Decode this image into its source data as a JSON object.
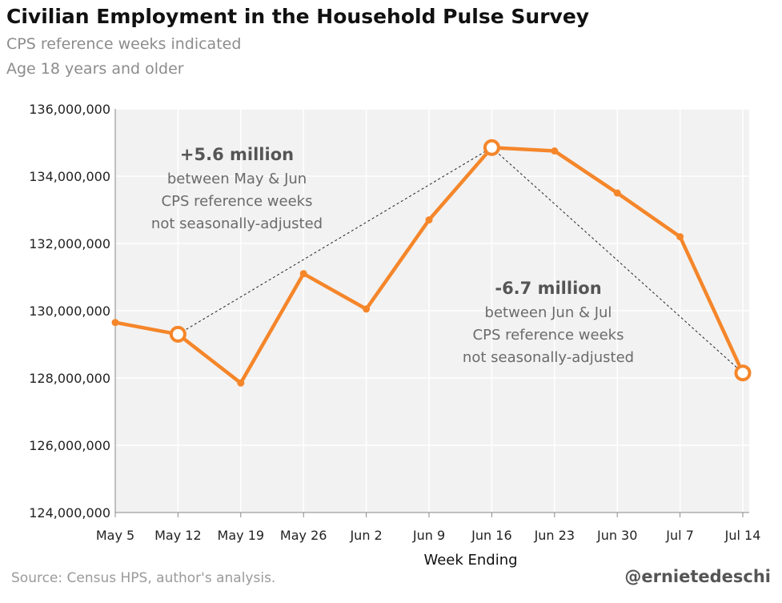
{
  "chart_data": {
    "type": "line",
    "title": "Civilian Employment in the Household Pulse Survey",
    "subtitle": [
      "CPS reference weeks indicated",
      "Age 18 years and older"
    ],
    "xlabel": "Week Ending",
    "ylabel": "",
    "categories": [
      "May 5",
      "May 12",
      "May 19",
      "May 26",
      "Jun 2",
      "Jun 9",
      "Jun 16",
      "Jun 23",
      "Jun 30",
      "Jul 7",
      "Jul 14"
    ],
    "series": [
      {
        "values": [
          129650000,
          129300000,
          127850000,
          131100000,
          130050000,
          132700000,
          134850000,
          134750000,
          133500000,
          132200000,
          128150000
        ],
        "color": "#f5862a"
      }
    ],
    "highlighted_points": [
      "May 12",
      "Jun 16",
      "Jul 14"
    ],
    "ylim": [
      124000000,
      136000000
    ],
    "yticks": [
      124000000,
      126000000,
      128000000,
      130000000,
      132000000,
      134000000,
      136000000
    ],
    "ytick_labels": [
      "124,000,000",
      "126,000,000",
      "128,000,000",
      "130,000,000",
      "132,000,000",
      "134,000,000",
      "136,000,000"
    ],
    "grid": true,
    "annotations": [
      {
        "headline": "+5.6 million",
        "lines": [
          "between May & Jun",
          "CPS reference weeks",
          "not seasonally-adjusted"
        ],
        "connects": [
          "May 12",
          "Jun 16"
        ]
      },
      {
        "headline": "-6.7 million",
        "lines": [
          "between Jun & Jul",
          "CPS reference weeks",
          "not seasonally-adjusted"
        ],
        "connects": [
          "Jun 16",
          "Jul 14"
        ]
      }
    ]
  },
  "source": "Source: Census HPS, author's analysis.",
  "handle": "@ernietedeschi",
  "colors": {
    "line": "#f5862a",
    "plot_bg": "#f2f2f2",
    "grid": "#ffffff"
  }
}
